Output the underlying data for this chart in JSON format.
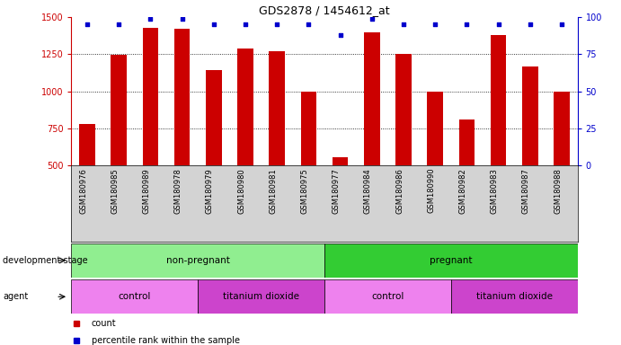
{
  "title": "GDS2878 / 1454612_at",
  "samples": [
    "GSM180976",
    "GSM180985",
    "GSM180989",
    "GSM180978",
    "GSM180979",
    "GSM180980",
    "GSM180981",
    "GSM180975",
    "GSM180977",
    "GSM180984",
    "GSM180986",
    "GSM180990",
    "GSM180982",
    "GSM180983",
    "GSM180987",
    "GSM180988"
  ],
  "counts": [
    780,
    1245,
    1430,
    1420,
    1145,
    1290,
    1270,
    1000,
    555,
    1400,
    1250,
    1000,
    810,
    1380,
    1170,
    1000
  ],
  "percentiles": [
    95,
    95,
    99,
    99,
    95,
    95,
    95,
    95,
    88,
    99,
    95,
    95,
    95,
    95,
    95,
    95
  ],
  "ylim_left": [
    500,
    1500
  ],
  "ylim_right": [
    0,
    100
  ],
  "yticks_left": [
    500,
    750,
    1000,
    1250,
    1500
  ],
  "yticks_right": [
    0,
    25,
    50,
    75,
    100
  ],
  "bar_color": "#cc0000",
  "dot_color": "#0000cc",
  "groups_dev": [
    {
      "label": "non-pregnant",
      "start": 0,
      "end": 8,
      "color": "#90ee90"
    },
    {
      "label": "pregnant",
      "start": 8,
      "end": 16,
      "color": "#33cc33"
    }
  ],
  "groups_agent": [
    {
      "label": "control",
      "start": 0,
      "end": 4,
      "color": "#ee82ee"
    },
    {
      "label": "titanium dioxide",
      "start": 4,
      "end": 8,
      "color": "#cc44cc"
    },
    {
      "label": "control",
      "start": 8,
      "end": 12,
      "color": "#ee82ee"
    },
    {
      "label": "titanium dioxide",
      "start": 12,
      "end": 16,
      "color": "#cc44cc"
    }
  ],
  "legend_items": [
    {
      "label": "count",
      "color": "#cc0000"
    },
    {
      "label": "percentile rank within the sample",
      "color": "#0000cc"
    }
  ],
  "grid_yticks": [
    750,
    1000,
    1250
  ],
  "tick_color_left": "#cc0000",
  "tick_color_right": "#0000cc",
  "label_bg_color": "#d3d3d3",
  "bar_width": 0.5
}
